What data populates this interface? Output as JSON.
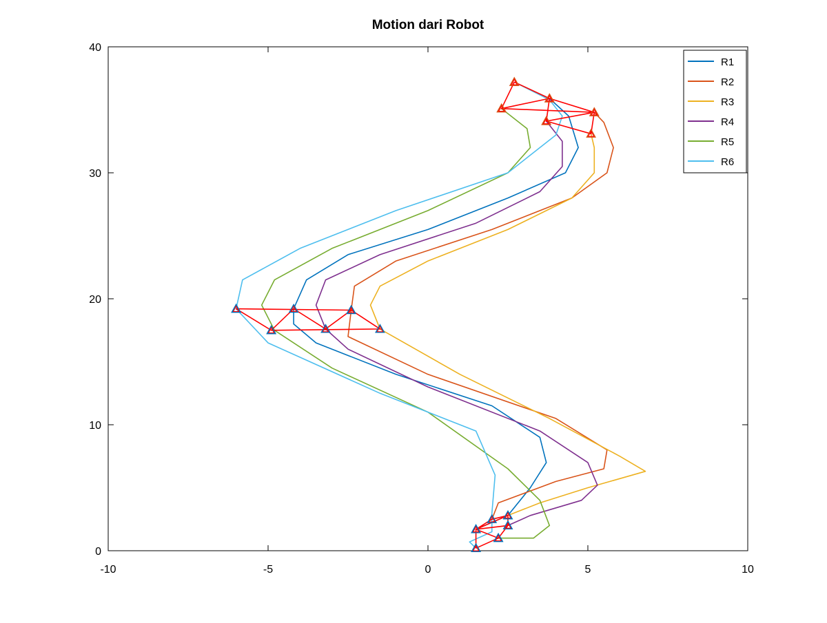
{
  "chart_data": {
    "type": "line",
    "title": "Motion dari Robot",
    "xlim": [
      -10,
      10
    ],
    "xticks": [
      -10,
      -5,
      0,
      5,
      10
    ],
    "ylim": [
      0,
      40
    ],
    "yticks": [
      0,
      10,
      20,
      30,
      40
    ],
    "legend": "upper right",
    "series": [
      {
        "name": "R1",
        "color": "#0072bd",
        "x": [
          1.5,
          2.5,
          3.2,
          3.7,
          3.5,
          2,
          -1,
          -3.5,
          -4.2,
          -4.2,
          -3.8,
          -2.5,
          0,
          2.5,
          4.3,
          4.7,
          4.4,
          3.8
        ],
        "y": [
          1.7,
          2.8,
          5,
          7,
          9,
          11.5,
          14,
          16.5,
          18,
          19.2,
          21.5,
          23.5,
          25.5,
          28,
          30,
          32,
          34.5,
          35.9
        ]
      },
      {
        "name": "R2",
        "color": "#d95319",
        "x": [
          2.0,
          2.2,
          4,
          5.5,
          5.6,
          4,
          0,
          -2.5,
          -2.4,
          -2.3,
          -1,
          2,
          4.5,
          5.6,
          5.8,
          5.5,
          5.2
        ],
        "y": [
          2.5,
          3.8,
          5.5,
          6.5,
          8,
          10.5,
          14,
          17,
          19.1,
          21,
          23,
          25.5,
          28,
          30,
          32,
          34,
          34.8
        ]
      },
      {
        "name": "R3",
        "color": "#edb120",
        "x": [
          2.5,
          3.5,
          5,
          6.8,
          6,
          3.8,
          1,
          -1.5,
          -1.8,
          -1.5,
          0,
          2.5,
          4.5,
          5.2,
          5.2,
          5.1
        ],
        "y": [
          2.8,
          3.8,
          5,
          6.3,
          7.5,
          10.5,
          14,
          17.6,
          19.5,
          21,
          23,
          25.5,
          28,
          30,
          32,
          33.1
        ]
      },
      {
        "name": "R4",
        "color": "#7e2f8e",
        "x": [
          2.5,
          3.2,
          4.8,
          5.3,
          5,
          3.5,
          0,
          -2.5,
          -3.2,
          -3.5,
          -3.2,
          -1.5,
          1.5,
          3.5,
          4.2,
          4.2,
          3.7
        ],
        "y": [
          2.0,
          2.8,
          4,
          5.2,
          7,
          9.5,
          13,
          16,
          17.6,
          19.5,
          21.5,
          23.5,
          26,
          28.5,
          30.5,
          32.5,
          34.1
        ]
      },
      {
        "name": "R5",
        "color": "#77ac30",
        "x": [
          2.2,
          3.3,
          3.8,
          3.5,
          2.5,
          0,
          -3,
          -4.8,
          -5.2,
          -4.8,
          -3,
          0,
          2.5,
          3.2,
          3.1,
          2.3
        ],
        "y": [
          1.0,
          1.0,
          2,
          4,
          6.5,
          11,
          14.5,
          17.5,
          19.5,
          21.5,
          24,
          27,
          30,
          32,
          33.5,
          35.1
        ]
      },
      {
        "name": "R6",
        "color": "#4dbeee",
        "x": [
          1.5,
          1.3,
          2,
          2,
          2.1,
          1.5,
          -1.5,
          -5,
          -6,
          -5.8,
          -4,
          -1,
          2.5,
          4,
          4.2,
          3.8,
          2.7
        ],
        "y": [
          0.2,
          0.7,
          1.5,
          3,
          6,
          9.5,
          12.5,
          16.5,
          19.2,
          21.5,
          24,
          27,
          30,
          33,
          34.5,
          35.8,
          37.2
        ]
      }
    ],
    "formations": [
      {
        "color": "#ff0000",
        "marker": "^",
        "marker_color": "#0072bd",
        "x": [
          1.5,
          1.5,
          2.2,
          2.5,
          1.5,
          2.0,
          2.5,
          2.5,
          null,
          1.5,
          2.5,
          null,
          1.5,
          2.2
        ],
        "y": [
          0.2,
          1.7,
          1.0,
          2.0,
          1.7,
          2.5,
          2.8,
          2.0,
          null,
          1.7,
          2.8,
          null,
          0.2,
          1.0
        ]
      },
      {
        "color": "#ff0000",
        "marker": "^",
        "marker_color": "#0072bd",
        "x": [
          -6,
          -4.9,
          -4.2,
          -3.2,
          -2.4,
          -1.5,
          -4.9,
          null,
          -6,
          -2.4
        ],
        "y": [
          19.2,
          17.5,
          19.2,
          17.6,
          19.1,
          17.6,
          17.5,
          null,
          19.2,
          19.1
        ]
      },
      {
        "color": "#ff0000",
        "marker": "^",
        "marker_color": "#d95319",
        "x": [
          2.7,
          3.8,
          2.3,
          2.7,
          null,
          3.8,
          5.2,
          3.7,
          3.8,
          null,
          2.3,
          5.2,
          5.1,
          3.7
        ],
        "y": [
          37.2,
          35.9,
          35.1,
          37.2,
          null,
          35.9,
          34.8,
          34.1,
          35.9,
          null,
          35.1,
          34.8,
          33.1,
          34.1
        ]
      }
    ]
  }
}
